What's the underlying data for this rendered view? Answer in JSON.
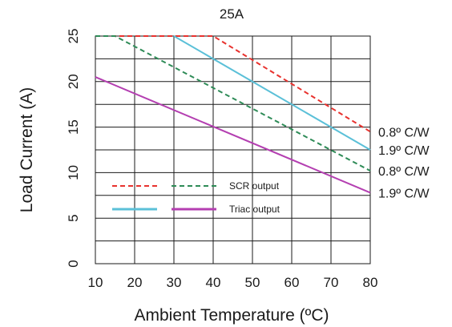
{
  "chart_data": {
    "type": "line",
    "title": "25A",
    "xlabel": "Ambient Temperature (ºC)",
    "ylabel": "Load Current (A)",
    "xlim": [
      10,
      80
    ],
    "ylim": [
      0,
      25
    ],
    "x_ticks": [
      10,
      20,
      30,
      40,
      50,
      60,
      70,
      80
    ],
    "y_ticks": [
      0,
      5,
      10,
      15,
      20,
      25
    ],
    "grid": true,
    "colors": {
      "scr_high": "#e8322e",
      "scr_low": "#2e8b57",
      "triac_high": "#5bc0d8",
      "triac_low": "#b43fb1"
    },
    "series": [
      {
        "name": "SCR output",
        "line_style": "dashed",
        "color": "#e8322e",
        "x": [
          10,
          40,
          80
        ],
        "y": [
          25,
          25,
          14.5
        ]
      },
      {
        "name": "SCR output",
        "line_style": "dashed",
        "color": "#2e8b57",
        "x": [
          10,
          15,
          80
        ],
        "y": [
          25,
          25,
          10.2
        ]
      },
      {
        "name": "Triac output",
        "line_style": "solid",
        "color": "#5bc0d8",
        "x": [
          30,
          80
        ],
        "y": [
          25,
          12.5
        ]
      },
      {
        "name": "Triac output",
        "line_style": "solid",
        "color": "#b43fb1",
        "x": [
          10,
          80
        ],
        "y": [
          20.5,
          7.8
        ]
      }
    ],
    "curve_labels": [
      "0.8º C/W",
      "0.8º C/W",
      "1.9º C/W",
      "1.9º C/W"
    ],
    "legend": [
      {
        "label": "SCR output",
        "colors": [
          "#e8322e",
          "#2e8b57"
        ],
        "line_style": "dashed"
      },
      {
        "label": "Triac output",
        "colors": [
          "#5bc0d8",
          "#b43fb1"
        ],
        "line_style": "solid"
      }
    ],
    "legend_position": "center-left"
  }
}
